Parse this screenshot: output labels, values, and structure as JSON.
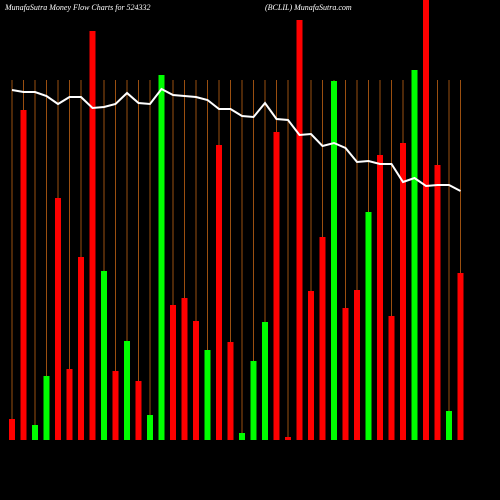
{
  "chart_data": {
    "type": "bar",
    "title": "MunafaSutra  Money Flow  Charts for 524332",
    "subtitle": "(BCLIL) MunafaSutra.com",
    "ylim": [
      0,
      440
    ],
    "grid": true,
    "grid_color": "#9a4f10",
    "background": "#000000",
    "series": [
      {
        "name": "money-flow",
        "values": [
          21,
          330,
          15,
          64,
          242,
          71,
          183,
          409,
          169,
          69,
          99,
          59,
          25,
          365,
          135,
          142,
          119,
          90,
          295,
          98,
          7,
          79,
          118,
          308,
          3,
          420,
          149,
          203,
          359,
          132,
          150,
          228,
          285,
          124,
          297,
          370,
          440,
          275,
          29,
          167
        ],
        "colors": [
          "#ff0000",
          "#ff0000",
          "#00ff00",
          "#00ff00",
          "#ff0000",
          "#ff0000",
          "#ff0000",
          "#ff0000",
          "#00ff00",
          "#ff0000",
          "#00ff00",
          "#ff0000",
          "#00ff00",
          "#00ff00",
          "#ff0000",
          "#ff0000",
          "#ff0000",
          "#00ff00",
          "#ff0000",
          "#ff0000",
          "#00ff00",
          "#00ff00",
          "#00ff00",
          "#ff0000",
          "#ff0000",
          "#ff0000",
          "#ff0000",
          "#ff0000",
          "#00ff00",
          "#ff0000",
          "#ff0000",
          "#00ff00",
          "#ff0000",
          "#ff0000",
          "#ff0000",
          "#00ff00",
          "#ff0000",
          "#ff0000",
          "#00ff00",
          "#ff0000"
        ]
      },
      {
        "name": "trend",
        "color": "#ffffff",
        "values": [
          350,
          348,
          348,
          344,
          336,
          343,
          343,
          332,
          333,
          336,
          347,
          337,
          336,
          351,
          345,
          344,
          343,
          340,
          331,
          331,
          324,
          323,
          337,
          321,
          320,
          305,
          306,
          294,
          297,
          292,
          278,
          279,
          276,
          276,
          258,
          262,
          254,
          255,
          255,
          249
        ]
      }
    ]
  }
}
